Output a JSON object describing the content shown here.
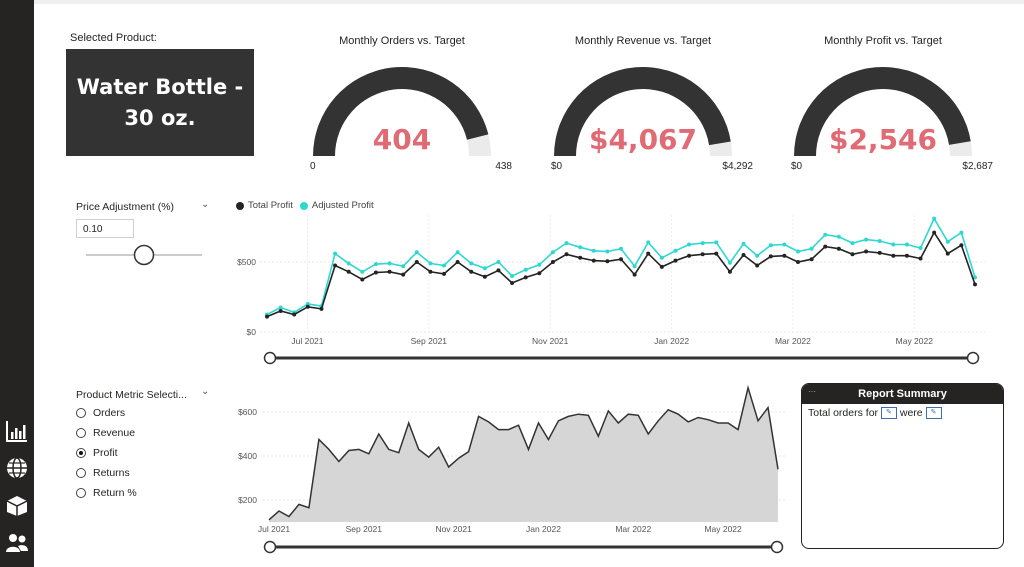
{
  "sidebar": {
    "icons": [
      "bar-chart-icon",
      "globe-icon",
      "box-icon",
      "users-icon"
    ]
  },
  "product": {
    "label": "Selected Product:",
    "name": "Water Bottle - 30 oz."
  },
  "gauges": [
    {
      "title": "Monthly Orders vs. Target",
      "value": "404",
      "min": "0",
      "max": "438",
      "fraction": 0.922
    },
    {
      "title": "Monthly Revenue vs. Target",
      "value": "$4,067",
      "min": "$0",
      "max": "$4,292",
      "fraction": 0.948
    },
    {
      "title": "Monthly Profit vs. Target",
      "value": "$2,546",
      "min": "$0",
      "max": "$2,687",
      "fraction": 0.947
    }
  ],
  "colors": {
    "gauge_fill": "#333333",
    "gauge_track": "#ebebeb",
    "value": "#e06b74",
    "total": "#252423",
    "adjusted": "#2ed8d0",
    "area": "#d6d6d6"
  },
  "price": {
    "title": "Price Adjustment (%)",
    "value": "0.10",
    "slider": 0.5
  },
  "metric": {
    "title": "Product Metric Selecti...",
    "options": [
      "Orders",
      "Revenue",
      "Profit",
      "Returns",
      "Return %"
    ],
    "selected": "Profit"
  },
  "report": {
    "title": "Report Summary",
    "text_a": "Total orders for",
    "text_b": "were"
  },
  "chart_data": [
    {
      "type": "line",
      "legend": "top-left",
      "grid": true,
      "x_ticks": [
        "Jul 2021",
        "Sep 2021",
        "Nov 2021",
        "Jan 2022",
        "Mar 2022",
        "May 2022"
      ],
      "y_ticks": [
        "$0",
        "$500"
      ],
      "ylim": [
        0,
        800
      ],
      "series": [
        {
          "name": "Total Profit",
          "values": [
            110,
            150,
            125,
            180,
            165,
            475,
            430,
            375,
            425,
            430,
            410,
            500,
            430,
            415,
            500,
            430,
            395,
            440,
            350,
            390,
            420,
            500,
            555,
            530,
            510,
            505,
            520,
            410,
            560,
            465,
            510,
            545,
            555,
            560,
            430,
            550,
            475,
            540,
            545,
            500,
            520,
            610,
            595,
            555,
            575,
            565,
            545,
            545,
            525,
            710,
            560,
            620,
            340
          ]
        },
        {
          "name": "Adjusted Profit",
          "values": [
            125,
            175,
            140,
            200,
            185,
            560,
            490,
            430,
            485,
            490,
            470,
            570,
            490,
            475,
            570,
            490,
            455,
            500,
            400,
            445,
            480,
            570,
            635,
            605,
            580,
            575,
            595,
            470,
            640,
            530,
            580,
            625,
            635,
            640,
            495,
            630,
            545,
            620,
            625,
            575,
            595,
            695,
            680,
            635,
            660,
            650,
            625,
            625,
            600,
            810,
            645,
            710,
            390
          ]
        }
      ]
    },
    {
      "type": "area",
      "grid": true,
      "x_ticks": [
        "Jul 2021",
        "Sep 2021",
        "Nov 2021",
        "Jan 2022",
        "Mar 2022",
        "May 2022"
      ],
      "y_ticks": [
        "$200",
        "$400",
        "$600"
      ],
      "ylim": [
        100,
        700
      ],
      "series": [
        {
          "name": "Profit",
          "values": [
            110,
            150,
            125,
            180,
            165,
            475,
            430,
            375,
            425,
            430,
            410,
            500,
            430,
            415,
            550,
            430,
            395,
            440,
            350,
            390,
            420,
            580,
            555,
            520,
            520,
            540,
            430,
            550,
            475,
            560,
            580,
            590,
            585,
            490,
            605,
            550,
            590,
            585,
            500,
            560,
            610,
            590,
            555,
            575,
            565,
            550,
            550,
            520,
            710,
            560,
            620,
            340
          ]
        }
      ]
    }
  ]
}
